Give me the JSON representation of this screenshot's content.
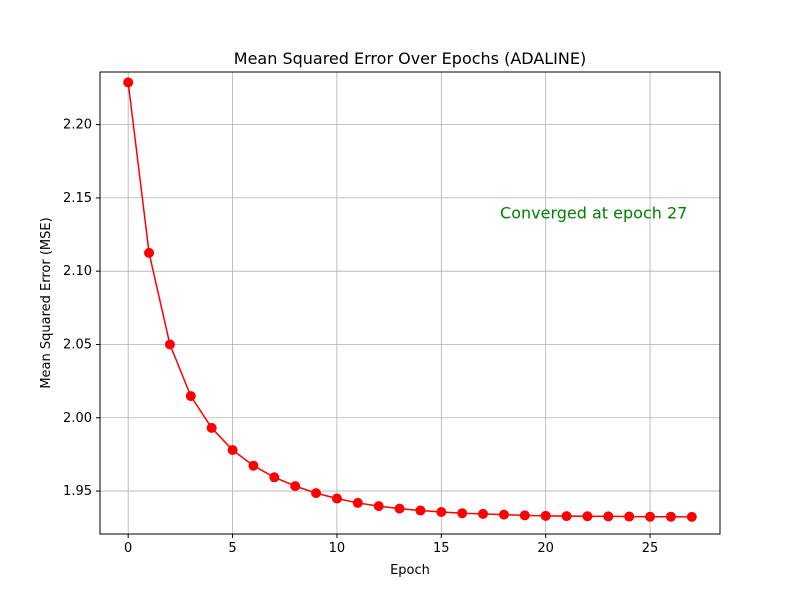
{
  "chart_data": {
    "type": "line",
    "title": "Mean Squared Error Over Epochs (ADALINE)",
    "xlabel": "Epoch",
    "ylabel": "Mean Squared Error (MSE)",
    "xlim": [
      -1.35,
      28.35
    ],
    "ylim": [
      1.9207,
      2.2359
    ],
    "xticks": [
      0,
      5,
      10,
      15,
      20,
      25
    ],
    "yticks": [
      1.95,
      2.0,
      2.05,
      2.1,
      2.15,
      2.2
    ],
    "ytick_labels": [
      "1.95",
      "2.00",
      "2.05",
      "2.10",
      "2.15",
      "2.20"
    ],
    "grid": true,
    "series": [
      {
        "color": "#ff0000",
        "marker": "circle",
        "x": [
          0,
          1,
          2,
          3,
          4,
          5,
          6,
          7,
          8,
          9,
          10,
          11,
          12,
          13,
          14,
          15,
          16,
          17,
          18,
          19,
          20,
          21,
          22,
          23,
          24,
          25,
          26,
          27
        ],
        "y": [
          2.2288,
          2.1125,
          2.05,
          2.0148,
          1.9931,
          1.978,
          1.9673,
          1.9594,
          1.9534,
          1.9486,
          1.9449,
          1.9419,
          1.9397,
          1.938,
          1.9367,
          1.9357,
          1.9349,
          1.9344,
          1.9339,
          1.9334,
          1.9331,
          1.9329,
          1.9328,
          1.9327,
          1.9326,
          1.9325,
          1.9325,
          1.9324
        ]
      }
    ],
    "annotation": {
      "text": "Converged at epoch 27",
      "x": 22.3,
      "y": 2.136,
      "color": "#008000"
    }
  }
}
